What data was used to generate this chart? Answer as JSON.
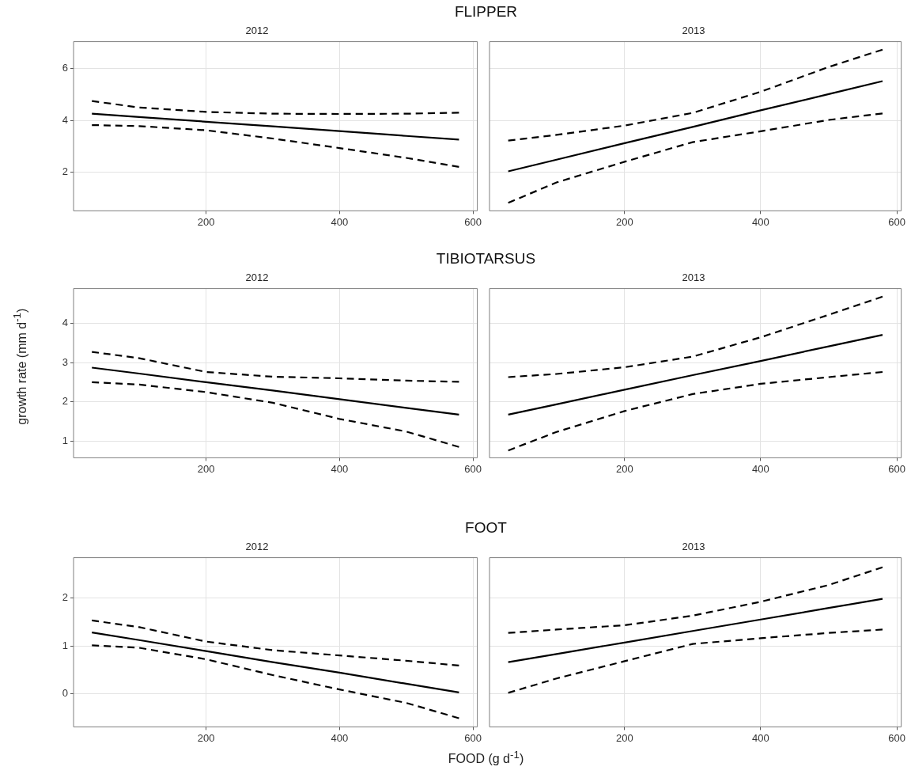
{
  "chart_data": [
    {
      "type": "line",
      "title": "FLIPPER",
      "subtitle": "2012",
      "x": [
        29,
        100,
        200,
        300,
        400,
        500,
        579
      ],
      "xlim": [
        1.5,
        606.5
      ],
      "xticks": [
        200,
        400,
        600
      ],
      "ylim": [
        0.5,
        7.05
      ],
      "yticks": [
        2,
        4,
        6
      ],
      "grid": true,
      "marker": "none",
      "series": [
        {
          "color": "#000000",
          "line_style": "solid",
          "values": [
            4.26,
            4.13,
            3.95,
            3.77,
            3.59,
            3.4,
            3.26
          ]
        },
        {
          "color": "#000000",
          "line_style": "dashed",
          "values": [
            4.75,
            4.5,
            4.33,
            4.26,
            4.25,
            4.26,
            4.3
          ]
        },
        {
          "color": "#000000",
          "line_style": "dashed",
          "values": [
            3.82,
            3.78,
            3.62,
            3.3,
            2.93,
            2.55,
            2.2
          ]
        }
      ]
    },
    {
      "type": "line",
      "subtitle": "2013",
      "x": [
        29,
        100,
        200,
        300,
        400,
        500,
        579
      ],
      "xlim": [
        1.5,
        606.5
      ],
      "xticks": [
        200,
        400,
        600
      ],
      "ylim": [
        0.5,
        7.05
      ],
      "yticks": [
        2,
        4,
        6
      ],
      "grid": true,
      "marker": "none",
      "tick_labels": "x",
      "series": [
        {
          "color": "#000000",
          "line_style": "solid",
          "values": [
            2.03,
            2.48,
            3.12,
            3.75,
            4.39,
            5.02,
            5.52
          ]
        },
        {
          "color": "#000000",
          "line_style": "dashed",
          "values": [
            3.22,
            3.44,
            3.8,
            4.29,
            5.11,
            6.07,
            6.74
          ]
        },
        {
          "color": "#000000",
          "line_style": "dashed",
          "values": [
            0.81,
            1.6,
            2.4,
            3.16,
            3.58,
            4.02,
            4.27
          ]
        }
      ]
    },
    {
      "type": "line",
      "title": "TIBIOTARSUS",
      "subtitle": "2012",
      "ylabel": "growth rate (mm d$^{-1}$)",
      "x": [
        29,
        100,
        200,
        300,
        400,
        500,
        579
      ],
      "xlim": [
        1.5,
        606.5
      ],
      "xticks": [
        200,
        400,
        600
      ],
      "ylim": [
        0.585,
        4.875
      ],
      "yticks": [
        1,
        2,
        3,
        4
      ],
      "grid": true,
      "marker": "none",
      "series": [
        {
          "color": "#000000",
          "line_style": "solid",
          "values": [
            2.87,
            2.72,
            2.5,
            2.29,
            2.07,
            1.85,
            1.68
          ]
        },
        {
          "color": "#000000",
          "line_style": "dashed",
          "values": [
            3.27,
            3.11,
            2.76,
            2.64,
            2.6,
            2.54,
            2.51
          ]
        },
        {
          "color": "#000000",
          "line_style": "dashed",
          "values": [
            2.5,
            2.44,
            2.25,
            1.98,
            1.57,
            1.25,
            0.86
          ]
        }
      ]
    },
    {
      "type": "line",
      "subtitle": "2013",
      "x": [
        29,
        100,
        200,
        300,
        400,
        500,
        579
      ],
      "xlim": [
        1.5,
        606.5
      ],
      "xticks": [
        200,
        400,
        600
      ],
      "ylim": [
        0.585,
        4.875
      ],
      "yticks": [
        1,
        2,
        3,
        4
      ],
      "grid": true,
      "marker": "none",
      "tick_labels": "x",
      "series": [
        {
          "color": "#000000",
          "line_style": "solid",
          "values": [
            1.68,
            1.94,
            2.31,
            2.68,
            3.04,
            3.41,
            3.7
          ]
        },
        {
          "color": "#000000",
          "line_style": "dashed",
          "values": [
            2.63,
            2.71,
            2.88,
            3.15,
            3.64,
            4.21,
            4.67
          ]
        },
        {
          "color": "#000000",
          "line_style": "dashed",
          "values": [
            0.77,
            1.24,
            1.77,
            2.2,
            2.46,
            2.63,
            2.76
          ]
        }
      ]
    },
    {
      "type": "line",
      "title": "FOOT",
      "subtitle": "2012",
      "xlabel": "FOOD (g d$^{-1}$)",
      "x": [
        29,
        100,
        200,
        300,
        400,
        500,
        579
      ],
      "xlim": [
        1.5,
        606.5
      ],
      "xticks": [
        200,
        400,
        600
      ],
      "ylim": [
        -0.69,
        2.84
      ],
      "yticks": [
        0,
        1,
        2
      ],
      "grid": true,
      "marker": "none",
      "series": [
        {
          "color": "#000000",
          "line_style": "solid",
          "values": [
            1.28,
            1.12,
            0.89,
            0.66,
            0.44,
            0.21,
            0.03
          ]
        },
        {
          "color": "#000000",
          "line_style": "dashed",
          "values": [
            1.53,
            1.39,
            1.09,
            0.91,
            0.8,
            0.69,
            0.59
          ]
        },
        {
          "color": "#000000",
          "line_style": "dashed",
          "values": [
            1.01,
            0.96,
            0.72,
            0.39,
            0.09,
            -0.19,
            -0.51
          ]
        }
      ]
    },
    {
      "type": "line",
      "subtitle": "2013",
      "x": [
        29,
        100,
        200,
        300,
        400,
        500,
        579
      ],
      "xlim": [
        1.5,
        606.5
      ],
      "xticks": [
        200,
        400,
        600
      ],
      "ylim": [
        -0.69,
        2.84
      ],
      "yticks": [
        0,
        1,
        2
      ],
      "grid": true,
      "marker": "none",
      "tick_labels": "x",
      "series": [
        {
          "color": "#000000",
          "line_style": "solid",
          "values": [
            0.66,
            0.83,
            1.07,
            1.31,
            1.55,
            1.79,
            1.98
          ]
        },
        {
          "color": "#000000",
          "line_style": "dashed",
          "values": [
            1.27,
            1.34,
            1.43,
            1.63,
            1.92,
            2.27,
            2.64
          ]
        },
        {
          "color": "#000000",
          "line_style": "dashed",
          "values": [
            0.02,
            0.32,
            0.68,
            1.04,
            1.16,
            1.27,
            1.34
          ]
        }
      ]
    }
  ]
}
